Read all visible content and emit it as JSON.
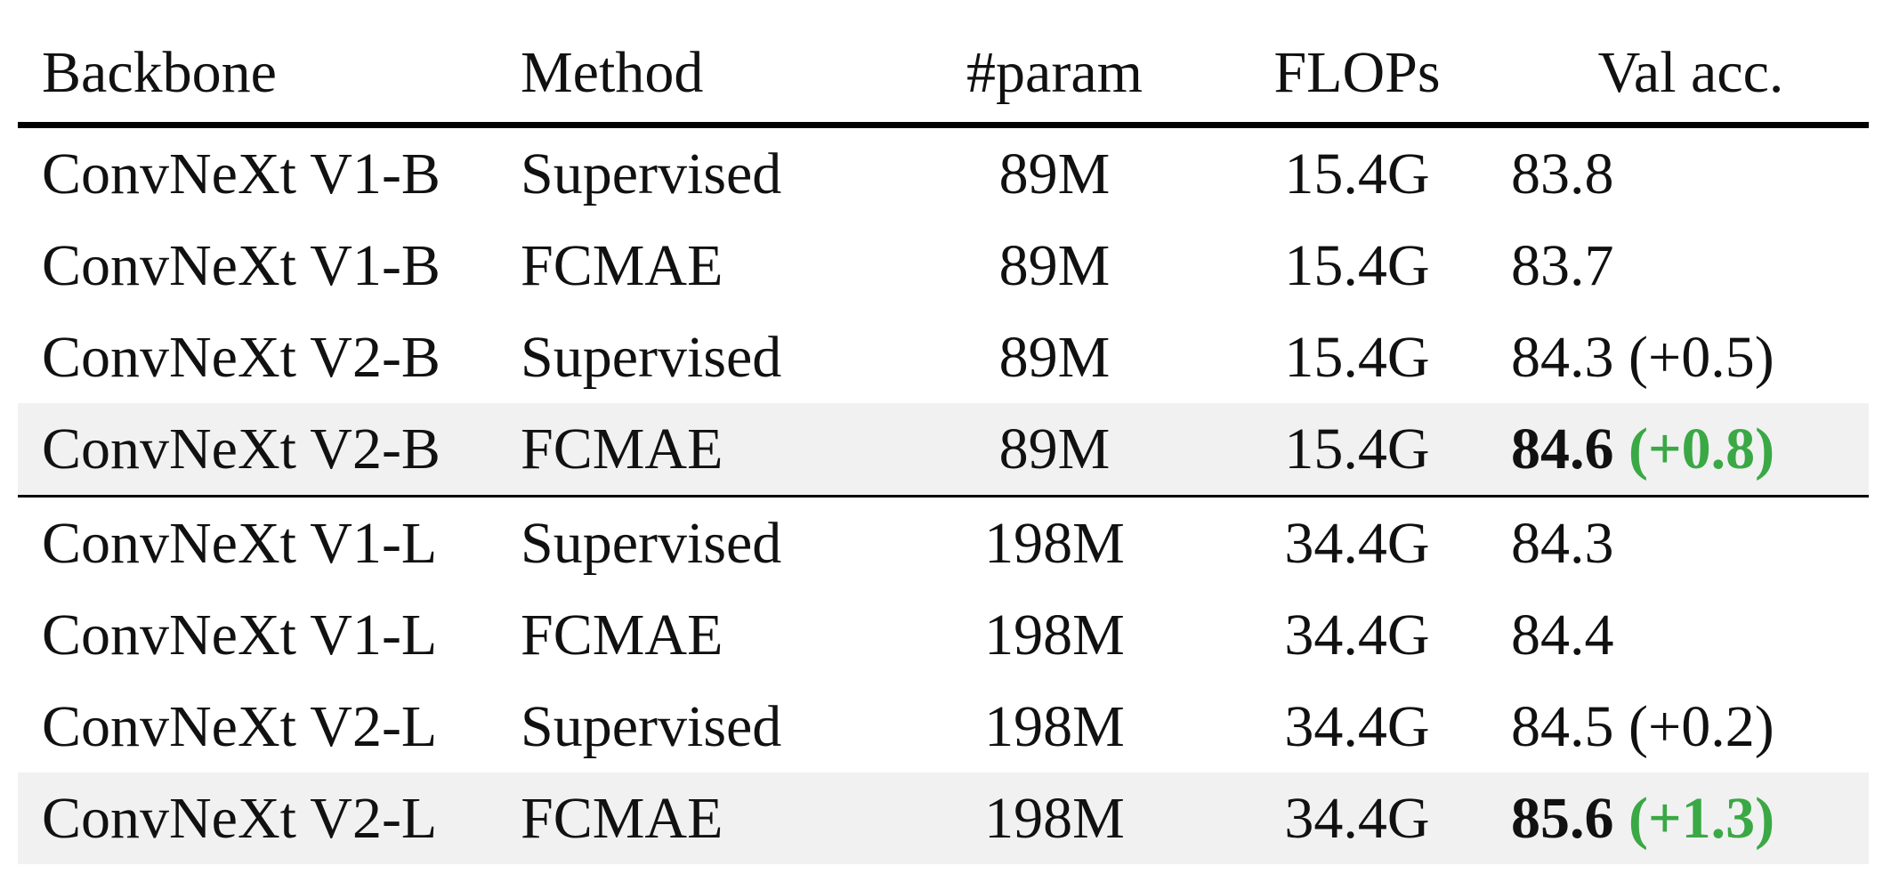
{
  "table": {
    "headers": [
      "Backbone",
      "Method",
      "#param",
      "FLOPs",
      "Val acc."
    ],
    "groups": [
      [
        {
          "backbone": "ConvNeXt V1-B",
          "method": "Supervised",
          "params": "89M",
          "flops": "15.4G",
          "acc": "83.8",
          "gain": "",
          "highlight": false,
          "bold": false
        },
        {
          "backbone": "ConvNeXt V1-B",
          "method": "FCMAE",
          "params": "89M",
          "flops": "15.4G",
          "acc": "83.7",
          "gain": "",
          "highlight": false,
          "bold": false
        },
        {
          "backbone": "ConvNeXt V2-B",
          "method": "Supervised",
          "params": "89M",
          "flops": "15.4G",
          "acc": "84.3",
          "gain": "(+0.5)",
          "highlight": false,
          "bold": false
        },
        {
          "backbone": "ConvNeXt V2-B",
          "method": "FCMAE",
          "params": "89M",
          "flops": "15.4G",
          "acc": "84.6",
          "gain": "(+0.8)",
          "highlight": true,
          "bold": true
        }
      ],
      [
        {
          "backbone": "ConvNeXt V1-L",
          "method": "Supervised",
          "params": "198M",
          "flops": "34.4G",
          "acc": "84.3",
          "gain": "",
          "highlight": false,
          "bold": false
        },
        {
          "backbone": "ConvNeXt V1-L",
          "method": "FCMAE",
          "params": "198M",
          "flops": "34.4G",
          "acc": "84.4",
          "gain": "",
          "highlight": false,
          "bold": false
        },
        {
          "backbone": "ConvNeXt V2-L",
          "method": "Supervised",
          "params": "198M",
          "flops": "34.4G",
          "acc": "84.5",
          "gain": "(+0.2)",
          "highlight": false,
          "bold": false
        },
        {
          "backbone": "ConvNeXt V2-L",
          "method": "FCMAE",
          "params": "198M",
          "flops": "34.4G",
          "acc": "85.6",
          "gain": "(+1.3)",
          "highlight": true,
          "bold": true
        }
      ]
    ],
    "colors": {
      "highlight_bg": "#f1f1f1",
      "gain_highlight": "#3aa845",
      "text": "#111111"
    }
  }
}
